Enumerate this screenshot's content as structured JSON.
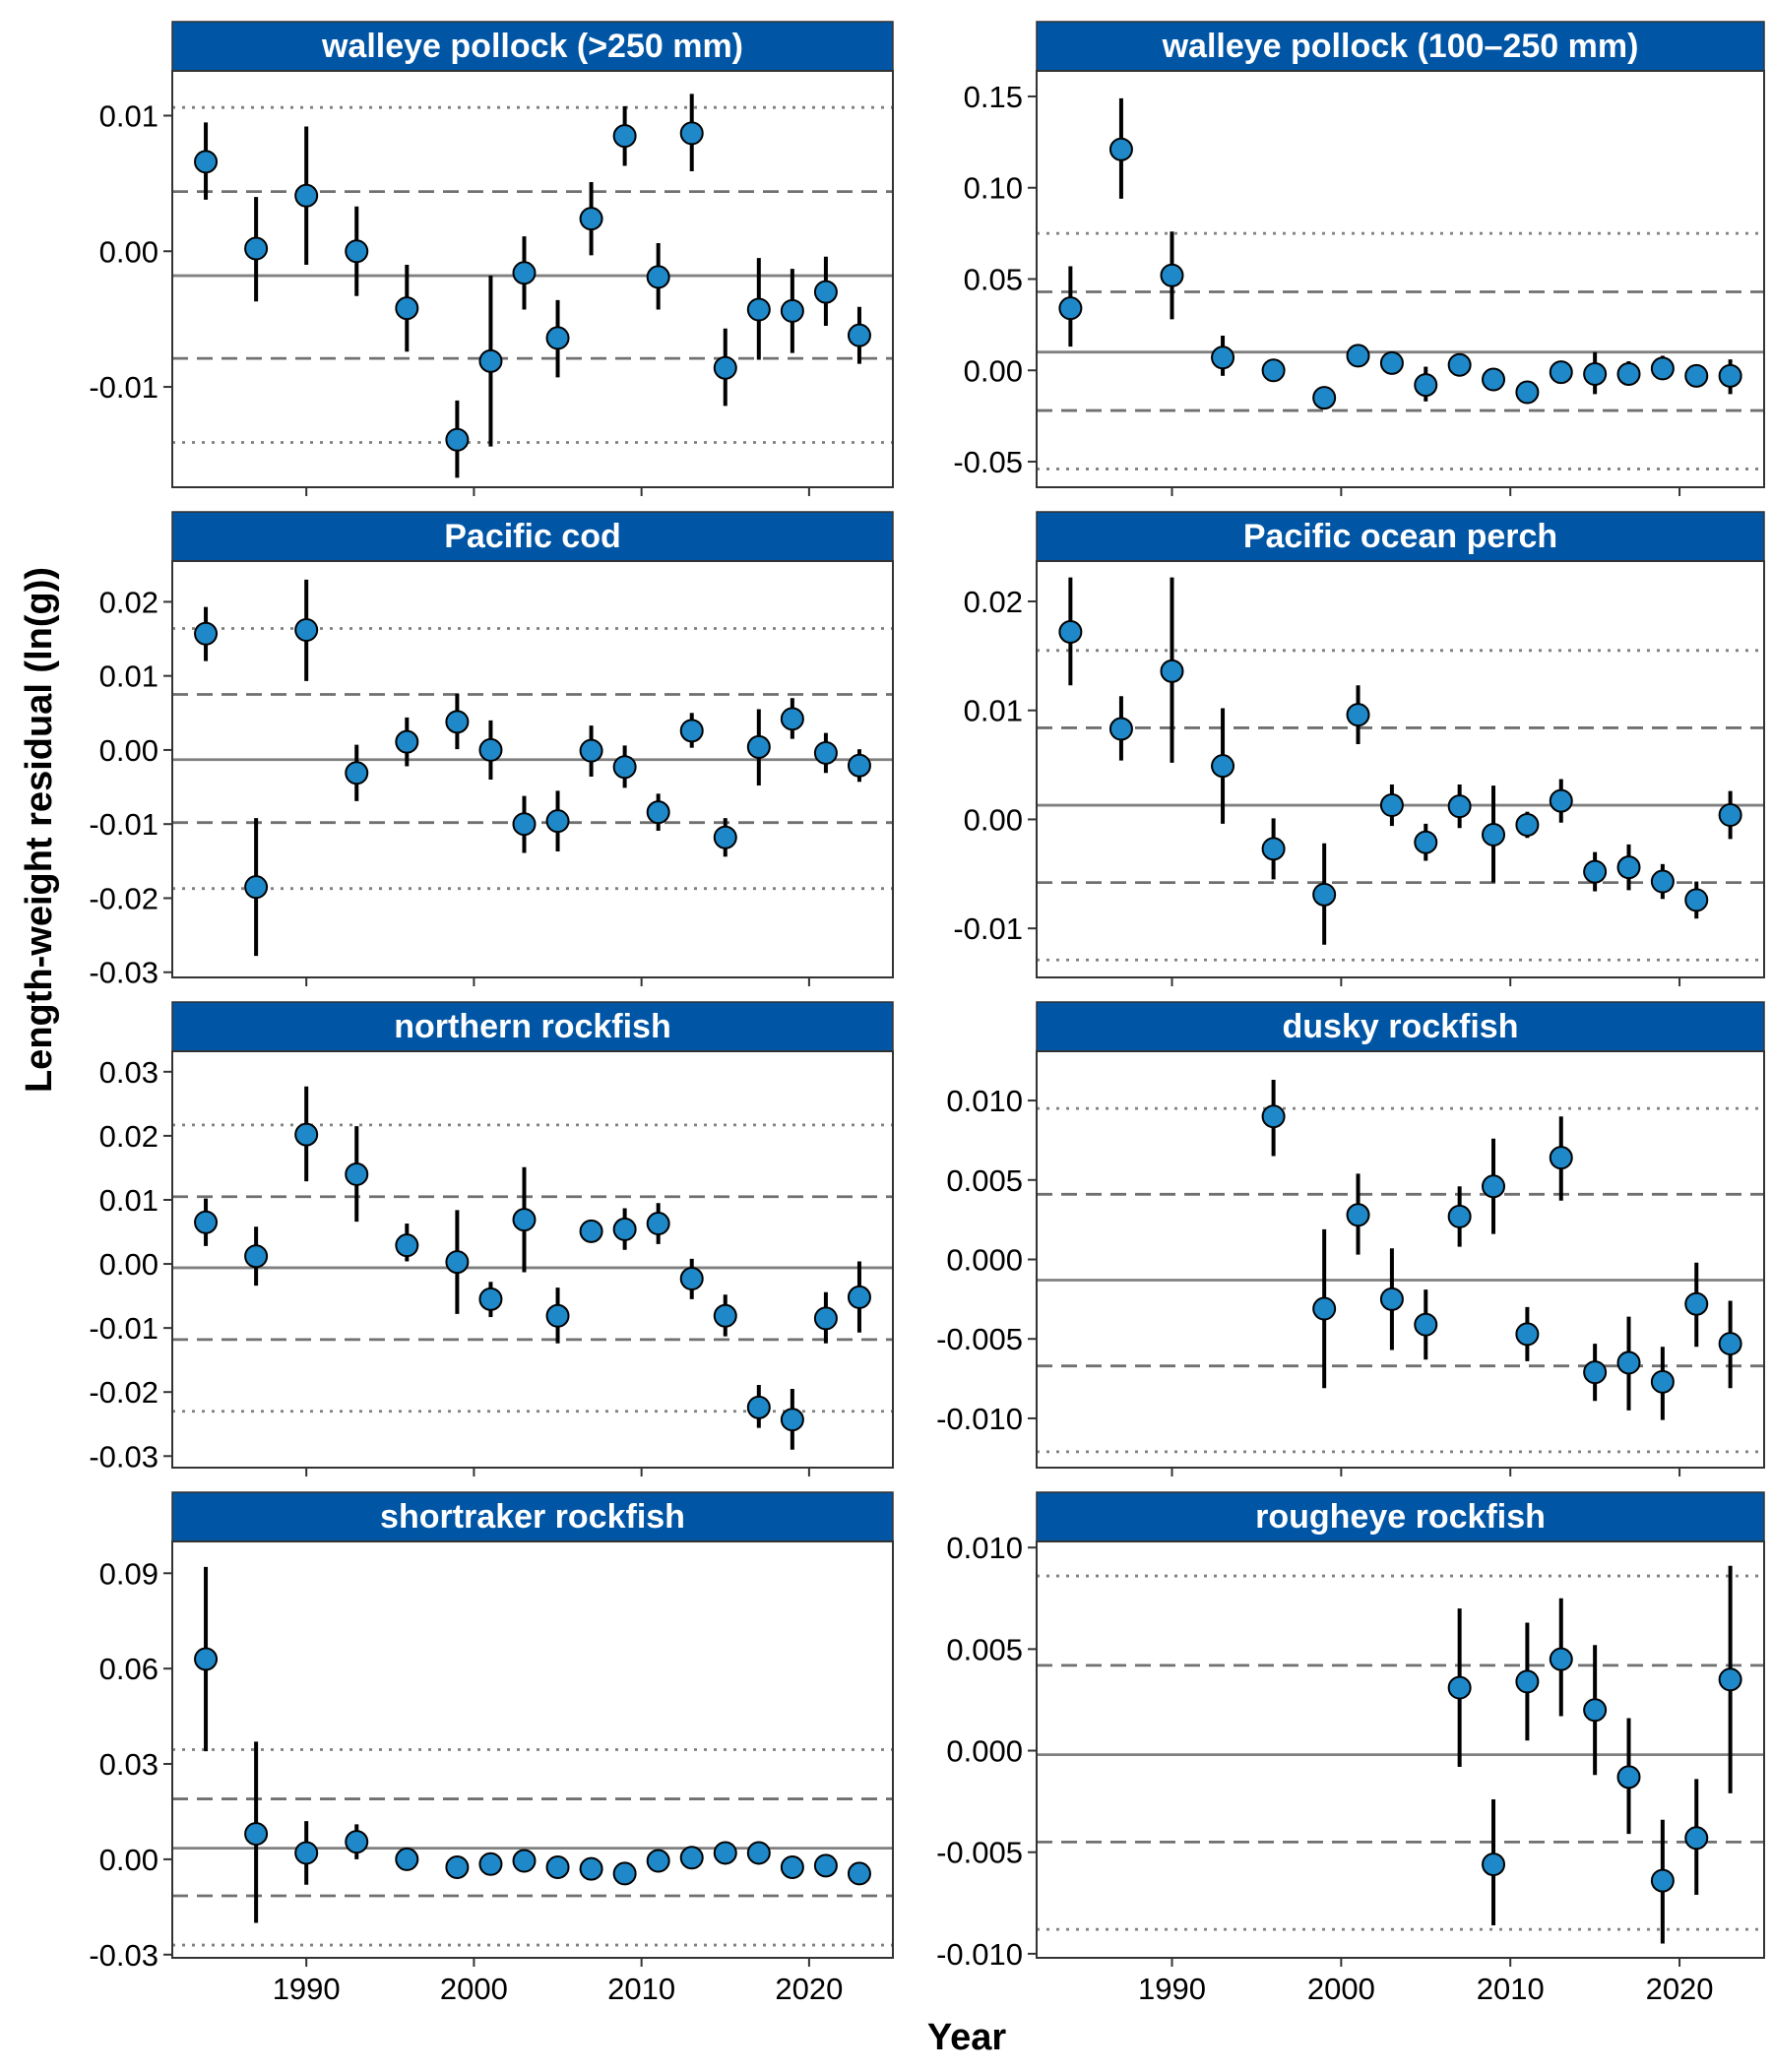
{
  "figure": {
    "ylabel": "Length-weight residual (ln(g))",
    "xlabel": "Year",
    "x_ticks": [
      1990,
      2000,
      2010,
      2020
    ],
    "xlim": [
      1982,
      2025
    ],
    "colors": {
      "strip": "#0055A4",
      "point_fill": "#1E88C8",
      "point_stroke": "#000000",
      "errorbar": "#000000",
      "mean_line": "#808080",
      "sd1_line": "#707070",
      "sd2_line": "#808080"
    },
    "line_styles": {
      "mean": "solid",
      "sd1": "dashed",
      "sd2": "dotted"
    }
  },
  "chart_data": [
    {
      "type": "scatter",
      "title": "walleye pollock (>250 mm)",
      "y_tick_labels": [
        "0.01",
        "0.00",
        "-0.01"
      ],
      "y_ticks": [
        0.01,
        0.0,
        -0.01
      ],
      "ylim": [
        -0.0174,
        0.0133
      ],
      "mean": -0.0018,
      "sd1": [
        0.0044,
        -0.0079
      ],
      "sd2": [
        0.0106,
        -0.0141
      ],
      "x": [
        1984,
        1987,
        1990,
        1993,
        1996,
        1999,
        2001,
        2003,
        2005,
        2007,
        2009,
        2011,
        2013,
        2015,
        2017,
        2019,
        2021,
        2023
      ],
      "y": [
        0.0066,
        0.0002,
        0.0041,
        0.0,
        -0.0042,
        -0.0139,
        -0.0081,
        -0.0016,
        -0.0064,
        0.0024,
        0.0085,
        -0.0019,
        0.0087,
        -0.0086,
        -0.0043,
        -0.0044,
        -0.003,
        -0.0062
      ],
      "lower": [
        0.0038,
        -0.0037,
        -0.001,
        -0.0033,
        -0.0074,
        -0.0167,
        -0.0144,
        -0.0043,
        -0.0093,
        -0.0003,
        0.0063,
        -0.0043,
        0.0059,
        -0.0114,
        -0.008,
        -0.0075,
        -0.0055,
        -0.0083
      ],
      "upper": [
        0.0095,
        0.004,
        0.0092,
        0.0033,
        -0.001,
        -0.011,
        -0.0018,
        0.0011,
        -0.0036,
        0.0051,
        0.0107,
        0.0006,
        0.0116,
        -0.0057,
        -0.0005,
        -0.0013,
        -0.0004,
        -0.0041
      ]
    },
    {
      "type": "scatter",
      "title": "walleye pollock (100–250 mm)",
      "y_tick_labels": [
        "0.15",
        "0.10",
        "0.05",
        "0.00",
        "-0.05"
      ],
      "y_ticks": [
        0.15,
        0.1,
        0.05,
        0.0,
        -0.05
      ],
      "ylim": [
        -0.064,
        0.164
      ],
      "mean": 0.01,
      "sd1": [
        0.043,
        -0.022
      ],
      "sd2": [
        0.075,
        -0.054
      ],
      "x": [
        1984,
        1987,
        1990,
        1993,
        1996,
        1999,
        2001,
        2003,
        2005,
        2007,
        2009,
        2011,
        2013,
        2015,
        2017,
        2019,
        2021,
        2023
      ],
      "y": [
        0.034,
        0.121,
        0.052,
        0.007,
        0.0,
        -0.015,
        0.008,
        0.004,
        -0.008,
        0.003,
        -0.005,
        -0.012,
        -0.001,
        -0.002,
        -0.002,
        0.001,
        -0.003,
        -0.003
      ],
      "lower": [
        0.013,
        0.094,
        0.028,
        -0.003,
        -0.004,
        -0.02,
        0.004,
        -0.001,
        -0.017,
        -0.003,
        -0.009,
        -0.016,
        -0.005,
        -0.013,
        -0.008,
        -0.004,
        -0.006,
        -0.013
      ],
      "upper": [
        0.057,
        0.149,
        0.076,
        0.019,
        0.004,
        -0.01,
        0.012,
        0.008,
        0.002,
        0.008,
        -0.001,
        -0.008,
        0.004,
        0.01,
        0.005,
        0.008,
        0.0,
        0.006
      ]
    },
    {
      "type": "scatter",
      "title": "Pacific cod",
      "y_tick_labels": [
        "0.02",
        "0.01",
        "0.00",
        "-0.01",
        "-0.02",
        "-0.03"
      ],
      "y_ticks": [
        0.02,
        0.01,
        0.0,
        -0.01,
        -0.02,
        -0.03
      ],
      "ylim": [
        -0.0307,
        0.0255
      ],
      "mean": -0.0013,
      "sd1": [
        0.0075,
        -0.0098
      ],
      "sd2": [
        0.0164,
        -0.0187
      ],
      "x": [
        1984,
        1987,
        1990,
        1993,
        1996,
        1999,
        2001,
        2003,
        2005,
        2007,
        2009,
        2011,
        2013,
        2015,
        2017,
        2019,
        2021,
        2023
      ],
      "y": [
        0.0157,
        -0.0185,
        0.0162,
        -0.0031,
        0.0011,
        0.0038,
        0.0,
        -0.01,
        -0.0096,
        -0.0001,
        -0.0023,
        -0.0084,
        0.0026,
        -0.0118,
        0.0004,
        0.0042,
        -0.0004,
        -0.0021
      ],
      "lower": [
        0.012,
        -0.0278,
        0.0093,
        -0.0069,
        -0.0022,
        0.0001,
        -0.004,
        -0.0139,
        -0.0137,
        -0.0036,
        -0.0051,
        -0.0109,
        0.0003,
        -0.0144,
        -0.0048,
        0.0015,
        -0.0031,
        -0.0043
      ],
      "upper": [
        0.0193,
        -0.0092,
        0.023,
        0.0007,
        0.0044,
        0.0076,
        0.004,
        -0.0062,
        -0.0055,
        0.0033,
        0.0006,
        -0.0059,
        0.005,
        -0.0092,
        0.0055,
        0.007,
        0.0023,
        0.0001
      ]
    },
    {
      "type": "scatter",
      "title": "Pacific ocean perch",
      "y_tick_labels": [
        "0.02",
        "0.01",
        "0.00",
        "-0.01"
      ],
      "y_ticks": [
        0.02,
        0.01,
        0.0,
        -0.01
      ],
      "ylim": [
        -0.0145,
        0.0237
      ],
      "mean": 0.0013,
      "sd1": [
        0.0084,
        -0.0058
      ],
      "sd2": [
        0.0155,
        -0.0129
      ],
      "x": [
        1984,
        1987,
        1990,
        1993,
        1996,
        1999,
        2001,
        2003,
        2005,
        2007,
        2009,
        2011,
        2013,
        2015,
        2017,
        2019,
        2021,
        2023
      ],
      "y": [
        0.0172,
        0.0083,
        0.0136,
        0.0049,
        -0.0027,
        -0.0069,
        0.0096,
        0.0013,
        -0.0021,
        0.0012,
        -0.0014,
        -0.0005,
        0.0017,
        -0.0048,
        -0.0044,
        -0.0057,
        -0.0074,
        0.0004
      ],
      "lower": [
        0.0123,
        0.0054,
        0.0052,
        -0.0004,
        -0.0055,
        -0.0115,
        0.0069,
        -0.0006,
        -0.0038,
        -0.0008,
        -0.0058,
        -0.0017,
        -0.0003,
        -0.0066,
        -0.0065,
        -0.0073,
        -0.0091,
        -0.0018
      ],
      "upper": [
        0.0222,
        0.0113,
        0.0222,
        0.0102,
        0.0001,
        -0.0022,
        0.0123,
        0.0032,
        -0.0004,
        0.0032,
        0.0031,
        0.0007,
        0.0037,
        -0.003,
        -0.0023,
        -0.0041,
        -0.0057,
        0.0026
      ]
    },
    {
      "type": "scatter",
      "title": "northern rockfish",
      "y_tick_labels": [
        "0.03",
        "0.02",
        "0.01",
        "0.00",
        "-0.01",
        "-0.02",
        "-0.03"
      ],
      "y_ticks": [
        0.03,
        0.02,
        0.01,
        0.0,
        -0.01,
        -0.02,
        -0.03
      ],
      "ylim": [
        -0.0318,
        0.0332
      ],
      "mean": -0.0006,
      "sd1": [
        0.0105,
        -0.0118
      ],
      "sd2": [
        0.0217,
        -0.023
      ],
      "x": [
        1984,
        1987,
        1990,
        1993,
        1996,
        1999,
        2001,
        2003,
        2005,
        2007,
        2009,
        2011,
        2013,
        2015,
        2017,
        2019,
        2021,
        2023
      ],
      "y": [
        0.0065,
        0.0012,
        0.0202,
        0.014,
        0.0029,
        0.0003,
        -0.0055,
        0.0069,
        -0.0081,
        0.0051,
        0.0054,
        0.0063,
        -0.0023,
        -0.0081,
        -0.0224,
        -0.0243,
        -0.0085,
        -0.0052
      ],
      "lower": [
        0.0028,
        -0.0034,
        0.0129,
        0.0066,
        0.0004,
        -0.0078,
        -0.0083,
        -0.0013,
        -0.0124,
        0.0037,
        0.0022,
        0.0031,
        -0.0055,
        -0.0113,
        -0.0256,
        -0.029,
        -0.0124,
        -0.0107
      ],
      "upper": [
        0.0102,
        0.0058,
        0.0277,
        0.0215,
        0.0063,
        0.0084,
        -0.0028,
        0.0151,
        -0.0037,
        0.0066,
        0.0087,
        0.0095,
        0.0008,
        -0.0048,
        -0.0189,
        -0.0195,
        -0.0044,
        0.0004
      ]
    },
    {
      "type": "scatter",
      "title": "dusky rockfish",
      "y_tick_labels": [
        "0.010",
        "0.005",
        "0.000",
        "-0.005",
        "-0.010"
      ],
      "y_ticks": [
        0.01,
        0.005,
        0.0,
        -0.005,
        -0.01
      ],
      "ylim": [
        -0.0131,
        0.0131
      ],
      "mean": -0.0013,
      "sd1": [
        0.0041,
        -0.0067
      ],
      "sd2": [
        0.0095,
        -0.0121
      ],
      "x": [
        1996,
        1999,
        2001,
        2003,
        2005,
        2007,
        2009,
        2011,
        2013,
        2015,
        2017,
        2019,
        2021,
        2023
      ],
      "y": [
        0.009,
        -0.0031,
        0.0028,
        -0.0025,
        -0.0041,
        0.0027,
        0.0046,
        -0.0047,
        0.0064,
        -0.0071,
        -0.0065,
        -0.0077,
        -0.0028,
        -0.0053
      ],
      "lower": [
        0.0065,
        -0.0081,
        0.0003,
        -0.0057,
        -0.0063,
        0.0008,
        0.0016,
        -0.0064,
        0.0037,
        -0.0089,
        -0.0095,
        -0.0101,
        -0.0055,
        -0.0081
      ],
      "upper": [
        0.0113,
        0.0019,
        0.0054,
        0.0007,
        -0.0019,
        0.0046,
        0.0076,
        -0.003,
        0.009,
        -0.0053,
        -0.0036,
        -0.0055,
        -0.0002,
        -0.0026
      ]
    },
    {
      "type": "scatter",
      "title": "shortraker rockfish",
      "y_tick_labels": [
        "0.09",
        "0.06",
        "0.03",
        "0.00",
        "-0.03"
      ],
      "y_ticks": [
        0.09,
        0.06,
        0.03,
        0.0,
        -0.03
      ],
      "ylim": [
        -0.031,
        0.1
      ],
      "mean": 0.0035,
      "sd1": [
        0.019,
        -0.0115
      ],
      "sd2": [
        0.0345,
        -0.027
      ],
      "x": [
        1984,
        1987,
        1990,
        1993,
        1996,
        1999,
        2001,
        2003,
        2005,
        2007,
        2009,
        2011,
        2013,
        2015,
        2017,
        2019,
        2021,
        2023
      ],
      "y": [
        0.063,
        0.008,
        0.002,
        0.0055,
        0.0,
        -0.0025,
        -0.0015,
        -0.0005,
        -0.0025,
        -0.003,
        -0.0045,
        -0.0005,
        0.0005,
        0.002,
        0.002,
        -0.0025,
        -0.002,
        -0.0045
      ],
      "lower": [
        0.034,
        -0.02,
        -0.008,
        0.0,
        -0.0025,
        -0.0035,
        -0.0025,
        -0.0015,
        -0.0035,
        -0.004,
        -0.0055,
        -0.0015,
        -0.0005,
        0.001,
        0.001,
        -0.0035,
        -0.003,
        -0.0055
      ],
      "upper": [
        0.092,
        0.037,
        0.012,
        0.011,
        0.0025,
        -0.0015,
        -0.0005,
        0.0005,
        -0.0015,
        -0.002,
        -0.0035,
        0.0005,
        0.0015,
        0.003,
        0.003,
        -0.0015,
        -0.001,
        -0.0035
      ]
    },
    {
      "type": "scatter",
      "title": "rougheye rockfish",
      "y_tick_labels": [
        "0.010",
        "0.005",
        "0.000",
        "-0.005",
        "-0.010"
      ],
      "y_ticks": [
        0.01,
        0.005,
        0.0,
        -0.005,
        -0.01
      ],
      "ylim": [
        -0.0102,
        0.0103
      ],
      "mean": -0.0002,
      "sd1": [
        0.0042,
        -0.0045
      ],
      "sd2": [
        0.0086,
        -0.0088
      ],
      "x": [
        2007,
        2009,
        2011,
        2013,
        2015,
        2017,
        2019,
        2021,
        2023
      ],
      "y": [
        0.0031,
        -0.0056,
        0.0034,
        0.0045,
        0.002,
        -0.0013,
        -0.0064,
        -0.0043,
        0.0035
      ],
      "lower": [
        -0.0008,
        -0.0086,
        0.0005,
        0.0017,
        -0.0012,
        -0.0041,
        -0.0095,
        -0.0071,
        -0.0021
      ],
      "upper": [
        0.007,
        -0.0024,
        0.0063,
        0.0075,
        0.0052,
        0.0016,
        -0.0034,
        -0.0014,
        0.0091
      ]
    }
  ]
}
